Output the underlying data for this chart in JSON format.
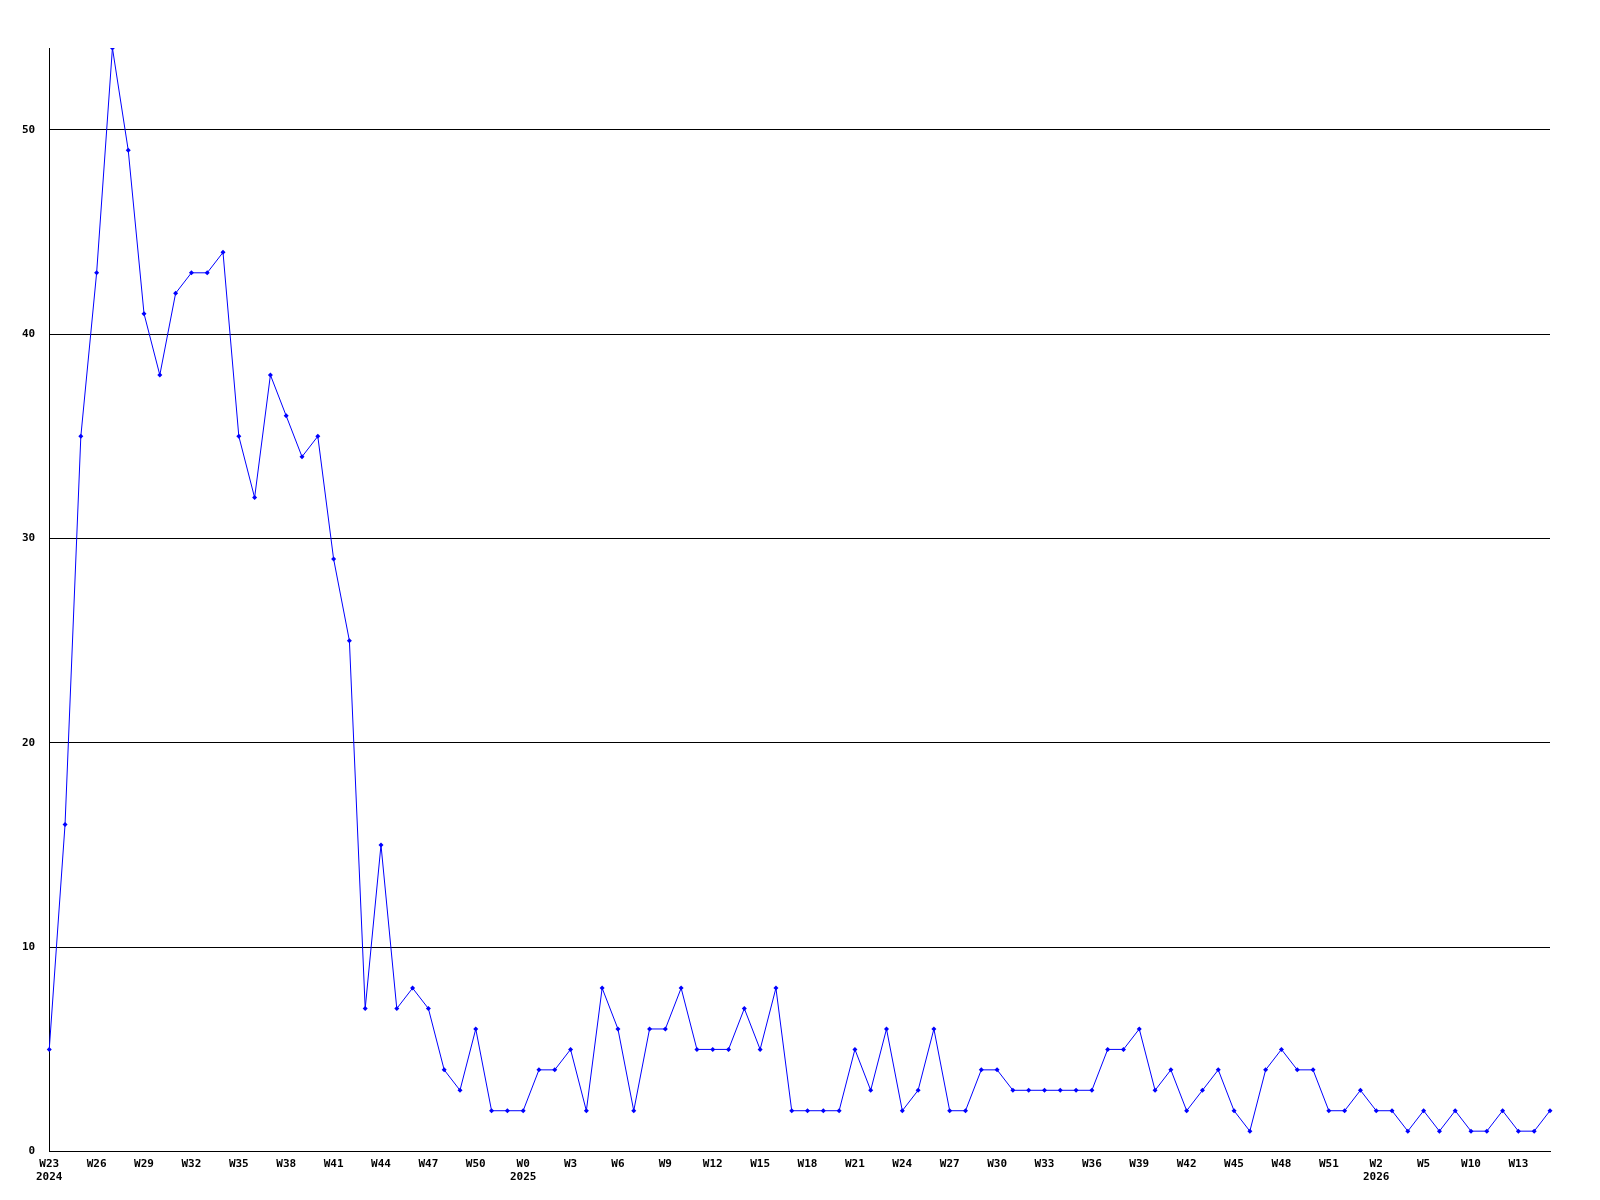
{
  "chart_data": {
    "type": "line",
    "categories": [
      "W23\n2024",
      null,
      null,
      "W26",
      null,
      null,
      "W29",
      null,
      null,
      "W32",
      null,
      null,
      "W35",
      null,
      null,
      "W38",
      null,
      null,
      "W41",
      null,
      null,
      "W44",
      null,
      null,
      "W47",
      null,
      null,
      "W50",
      null,
      null,
      "W0\n2025",
      null,
      null,
      "W3",
      null,
      null,
      "W6",
      null,
      null,
      "W9",
      null,
      null,
      "W12",
      null,
      null,
      "W15",
      null,
      null,
      "W18",
      null,
      null,
      "W21",
      null,
      null,
      "W24",
      null,
      null,
      "W27",
      null,
      null,
      "W30",
      null,
      null,
      "W33",
      null,
      null,
      "W36",
      null,
      null,
      "W39",
      null,
      null,
      "W42",
      null,
      null,
      "W45",
      null,
      null,
      "W48",
      null,
      null,
      "W51",
      null,
      null,
      "W2\n2026",
      null,
      null,
      "W5",
      null,
      null,
      "W10",
      null,
      null,
      "W13",
      null,
      null
    ],
    "series": [
      {
        "color": "#0000ff",
        "values": [
          5,
          16,
          35,
          43,
          54,
          49,
          41,
          38,
          42,
          43,
          43,
          44,
          35,
          32,
          38,
          36,
          34,
          35,
          29,
          25,
          7,
          15,
          7,
          8,
          7,
          4,
          3,
          6,
          2,
          2,
          2,
          4,
          4,
          5,
          2,
          8,
          6,
          2,
          6,
          6,
          8,
          5,
          5,
          5,
          7,
          5,
          8,
          2,
          2,
          2,
          2,
          5,
          3,
          6,
          2,
          3,
          6,
          2,
          2,
          4,
          4,
          3,
          3,
          3,
          3,
          3,
          3,
          5,
          5,
          6,
          3,
          4,
          2,
          3,
          4,
          2,
          1,
          4,
          5,
          4,
          4,
          2,
          2,
          3,
          2,
          2,
          1,
          2,
          1,
          2,
          1,
          1,
          2,
          1,
          1,
          2
        ]
      }
    ],
    "ylim": [
      0,
      54
    ],
    "yticks": [
      0,
      10,
      20,
      30,
      40,
      50
    ],
    "grid": "y",
    "marker": "diamond",
    "line_style": "solid"
  }
}
